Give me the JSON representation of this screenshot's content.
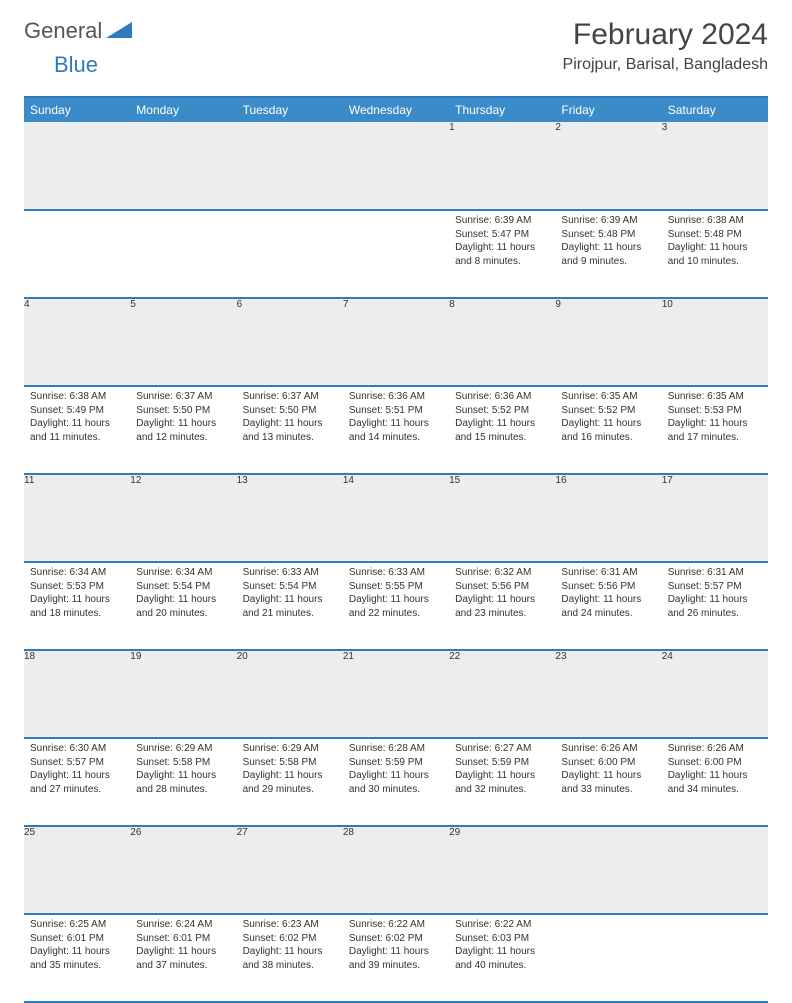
{
  "brand": {
    "text1": "General",
    "text2": "Blue"
  },
  "title": "February 2024",
  "location": "Pirojpur, Barisal, Bangladesh",
  "colors": {
    "header_bg": "#3b8bc8",
    "header_border": "#2f7bbf",
    "daynum_bg": "#eceded",
    "text": "#333333",
    "brand_gray": "#555555",
    "brand_blue": "#2f7bbf"
  },
  "weekdays": [
    "Sunday",
    "Monday",
    "Tuesday",
    "Wednesday",
    "Thursday",
    "Friday",
    "Saturday"
  ],
  "weeks": [
    [
      null,
      null,
      null,
      null,
      {
        "n": "1",
        "sr": "6:39 AM",
        "ss": "5:47 PM",
        "dl": "11 hours and 8 minutes."
      },
      {
        "n": "2",
        "sr": "6:39 AM",
        "ss": "5:48 PM",
        "dl": "11 hours and 9 minutes."
      },
      {
        "n": "3",
        "sr": "6:38 AM",
        "ss": "5:48 PM",
        "dl": "11 hours and 10 minutes."
      }
    ],
    [
      {
        "n": "4",
        "sr": "6:38 AM",
        "ss": "5:49 PM",
        "dl": "11 hours and 11 minutes."
      },
      {
        "n": "5",
        "sr": "6:37 AM",
        "ss": "5:50 PM",
        "dl": "11 hours and 12 minutes."
      },
      {
        "n": "6",
        "sr": "6:37 AM",
        "ss": "5:50 PM",
        "dl": "11 hours and 13 minutes."
      },
      {
        "n": "7",
        "sr": "6:36 AM",
        "ss": "5:51 PM",
        "dl": "11 hours and 14 minutes."
      },
      {
        "n": "8",
        "sr": "6:36 AM",
        "ss": "5:52 PM",
        "dl": "11 hours and 15 minutes."
      },
      {
        "n": "9",
        "sr": "6:35 AM",
        "ss": "5:52 PM",
        "dl": "11 hours and 16 minutes."
      },
      {
        "n": "10",
        "sr": "6:35 AM",
        "ss": "5:53 PM",
        "dl": "11 hours and 17 minutes."
      }
    ],
    [
      {
        "n": "11",
        "sr": "6:34 AM",
        "ss": "5:53 PM",
        "dl": "11 hours and 18 minutes."
      },
      {
        "n": "12",
        "sr": "6:34 AM",
        "ss": "5:54 PM",
        "dl": "11 hours and 20 minutes."
      },
      {
        "n": "13",
        "sr": "6:33 AM",
        "ss": "5:54 PM",
        "dl": "11 hours and 21 minutes."
      },
      {
        "n": "14",
        "sr": "6:33 AM",
        "ss": "5:55 PM",
        "dl": "11 hours and 22 minutes."
      },
      {
        "n": "15",
        "sr": "6:32 AM",
        "ss": "5:56 PM",
        "dl": "11 hours and 23 minutes."
      },
      {
        "n": "16",
        "sr": "6:31 AM",
        "ss": "5:56 PM",
        "dl": "11 hours and 24 minutes."
      },
      {
        "n": "17",
        "sr": "6:31 AM",
        "ss": "5:57 PM",
        "dl": "11 hours and 26 minutes."
      }
    ],
    [
      {
        "n": "18",
        "sr": "6:30 AM",
        "ss": "5:57 PM",
        "dl": "11 hours and 27 minutes."
      },
      {
        "n": "19",
        "sr": "6:29 AM",
        "ss": "5:58 PM",
        "dl": "11 hours and 28 minutes."
      },
      {
        "n": "20",
        "sr": "6:29 AM",
        "ss": "5:58 PM",
        "dl": "11 hours and 29 minutes."
      },
      {
        "n": "21",
        "sr": "6:28 AM",
        "ss": "5:59 PM",
        "dl": "11 hours and 30 minutes."
      },
      {
        "n": "22",
        "sr": "6:27 AM",
        "ss": "5:59 PM",
        "dl": "11 hours and 32 minutes."
      },
      {
        "n": "23",
        "sr": "6:26 AM",
        "ss": "6:00 PM",
        "dl": "11 hours and 33 minutes."
      },
      {
        "n": "24",
        "sr": "6:26 AM",
        "ss": "6:00 PM",
        "dl": "11 hours and 34 minutes."
      }
    ],
    [
      {
        "n": "25",
        "sr": "6:25 AM",
        "ss": "6:01 PM",
        "dl": "11 hours and 35 minutes."
      },
      {
        "n": "26",
        "sr": "6:24 AM",
        "ss": "6:01 PM",
        "dl": "11 hours and 37 minutes."
      },
      {
        "n": "27",
        "sr": "6:23 AM",
        "ss": "6:02 PM",
        "dl": "11 hours and 38 minutes."
      },
      {
        "n": "28",
        "sr": "6:22 AM",
        "ss": "6:02 PM",
        "dl": "11 hours and 39 minutes."
      },
      {
        "n": "29",
        "sr": "6:22 AM",
        "ss": "6:03 PM",
        "dl": "11 hours and 40 minutes."
      },
      null,
      null
    ]
  ],
  "labels": {
    "sunrise": "Sunrise:",
    "sunset": "Sunset:",
    "daylight": "Daylight:"
  }
}
